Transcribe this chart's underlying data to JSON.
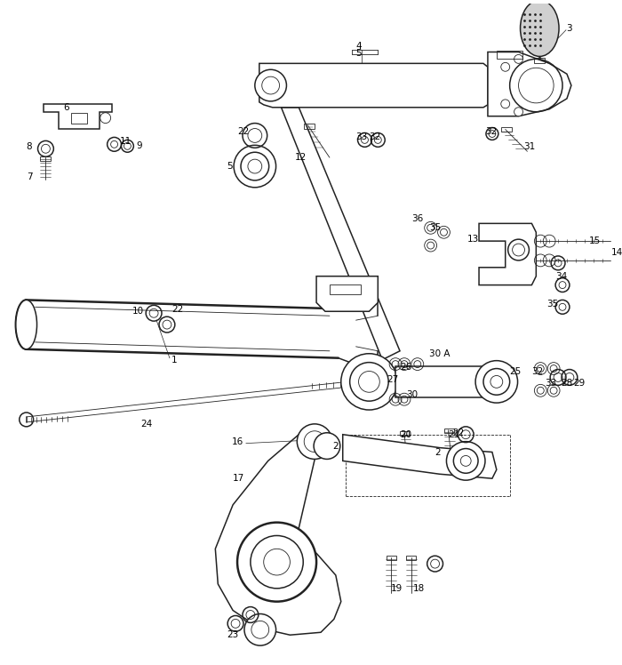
{
  "background_color": "#ffffff",
  "line_color": "#222222",
  "label_color": "#000000",
  "label_fontsize": 7.5,
  "lw_main": 1.1,
  "lw_thin": 0.6,
  "lw_thick": 1.8
}
